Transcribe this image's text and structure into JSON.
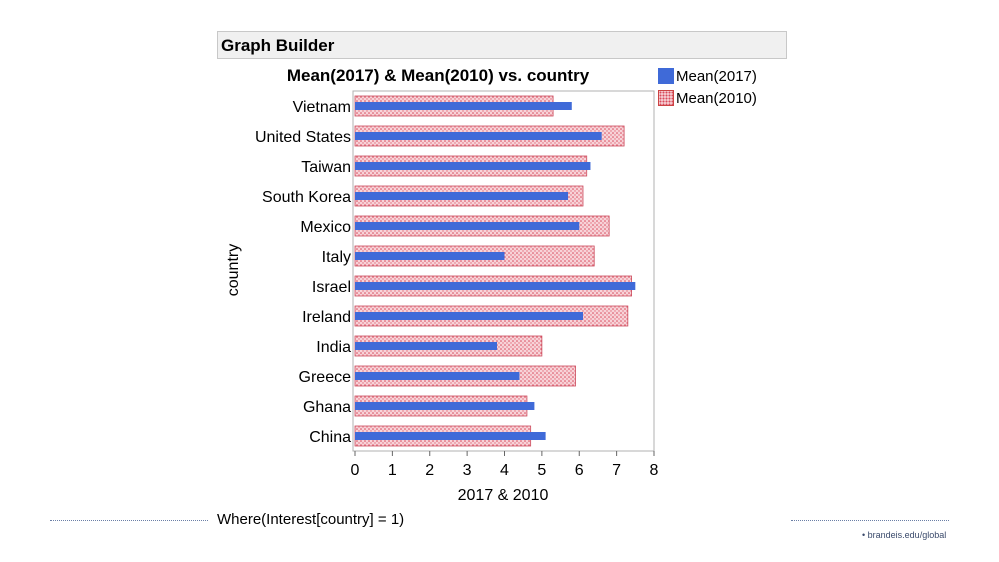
{
  "header": {
    "title": "Graph Builder"
  },
  "chart_data": {
    "type": "bar",
    "orientation": "horizontal",
    "title": "Mean(2017) & Mean(2010) vs. country",
    "xlabel": "2017 & 2010",
    "ylabel": "country",
    "xlim": [
      0,
      8
    ],
    "xticks": [
      0,
      1,
      2,
      3,
      4,
      5,
      6,
      7,
      8
    ],
    "categories": [
      "Vietnam",
      "United States",
      "Taiwan",
      "South Korea",
      "Mexico",
      "Italy",
      "Israel",
      "Ireland",
      "India",
      "Greece",
      "Ghana",
      "China"
    ],
    "series": [
      {
        "name": "Mean(2017)",
        "style": "solid",
        "color": "#3f6ad8",
        "values": [
          5.8,
          6.6,
          6.3,
          5.7,
          6.0,
          4.0,
          7.5,
          6.1,
          3.8,
          4.4,
          4.8,
          5.1
        ]
      },
      {
        "name": "Mean(2010)",
        "style": "pattern",
        "color": "#e06070",
        "values": [
          5.3,
          7.2,
          6.2,
          6.1,
          6.8,
          6.4,
          7.4,
          7.3,
          5.0,
          5.9,
          4.6,
          4.7
        ]
      }
    ],
    "legend_position": "top-right"
  },
  "footer": {
    "where_clause": "Where(Interest[country] = 1)",
    "site": "• brandeis.edu/global"
  }
}
